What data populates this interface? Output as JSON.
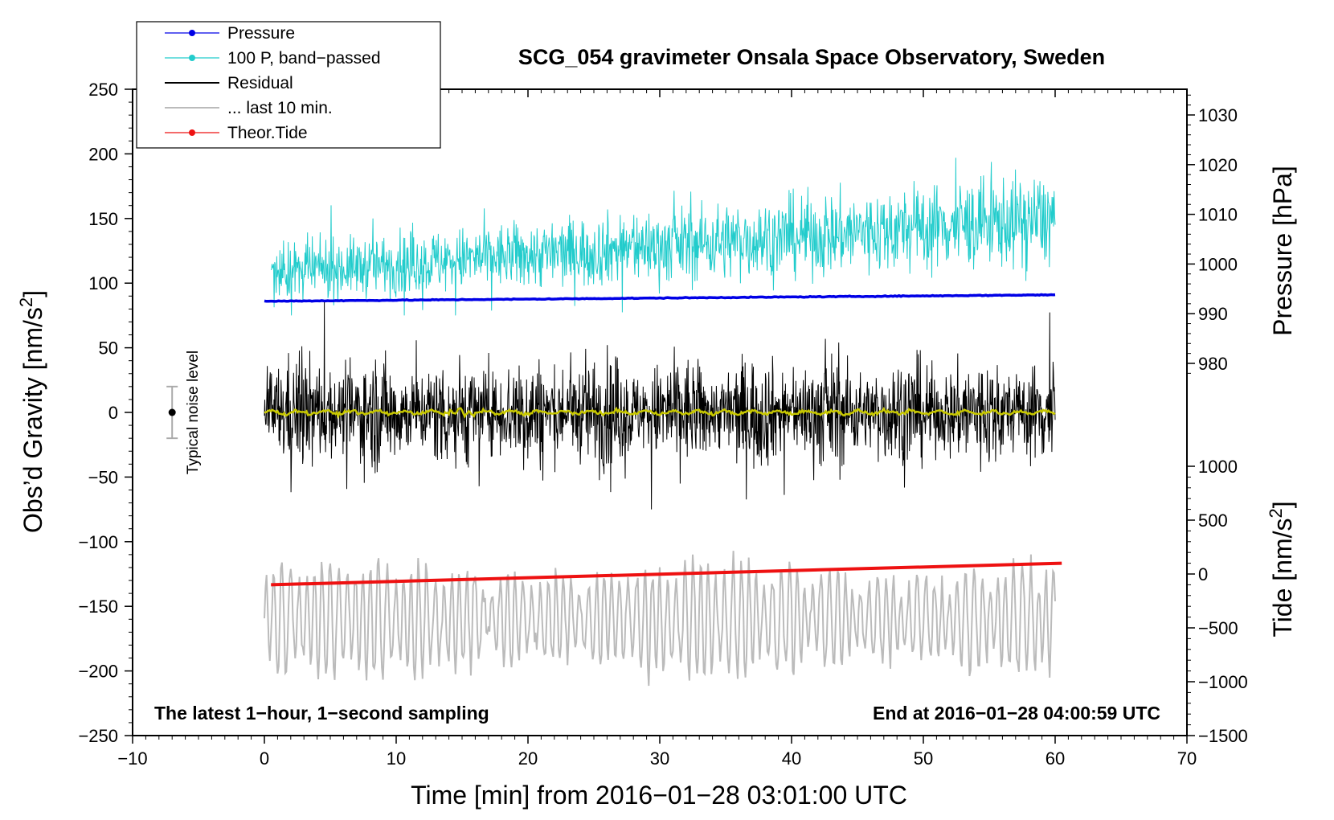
{
  "chart_data": {
    "type": "line",
    "title": "SCG_054 gravimeter Onsala Space Observatory, Sweden",
    "xlabel": "Time [min] from 2016−01−28 03:01:00 UTC",
    "ylabel_left": "Obs’d Gravity [nm/s",
    "ylabel_left_sup": "2",
    "ylabel_left_end": "]",
    "ylabel_right_pressure": "Pressure [hPa]",
    "ylabel_right_tide": "Tide [nm/s",
    "ylabel_right_tide_sup": "2",
    "ylabel_right_tide_end": "]",
    "xlim": [
      -10,
      70
    ],
    "ylim": [
      -250,
      250
    ],
    "pressure_axis": {
      "range": [
        980,
        1030
      ],
      "ticks": [
        980,
        990,
        1000,
        1010,
        1020,
        1030
      ]
    },
    "tide_axis": {
      "range": [
        -1500,
        1000
      ],
      "ticks": [
        -1500,
        -1000,
        -500,
        0,
        500,
        1000
      ]
    },
    "x_ticks": [
      "−10",
      "0",
      "10",
      "20",
      "30",
      "40",
      "50",
      "60",
      "70"
    ],
    "y_ticks": [
      "250",
      "200",
      "150",
      "100",
      "50",
      "0",
      "−50",
      "−100",
      "−150",
      "−200",
      "−250"
    ],
    "legend": [
      {
        "label": "Pressure",
        "color": "#0000e6",
        "marker": true
      },
      {
        "label": "100 P, band−passed",
        "color": "#22cccc",
        "marker": true
      },
      {
        "label": "Residual",
        "color": "#000000",
        "marker": false
      },
      {
        "label": "... last 10 min.",
        "color": "#bbbbbb",
        "marker": false
      },
      {
        "label": "Theor.Tide",
        "color": "#ee1111",
        "marker": true
      }
    ],
    "annotations": {
      "left": "The latest 1−hour, 1−second sampling",
      "right": "End at 2016−01−28 04:00:59 UTC",
      "noise": "Typical noise level"
    },
    "noise_bar": {
      "x": -7,
      "center": 0,
      "half_range": 20
    },
    "series": [
      {
        "name": "Pressure",
        "unit": "hPa",
        "color": "#0000e6",
        "x_range": [
          0,
          60
        ],
        "start": 992.5,
        "end": 993.8
      },
      {
        "name": "100 P, band−passed",
        "color": "#22cccc",
        "x_range": [
          0.5,
          60
        ],
        "start_center": 108,
        "end_center": 150,
        "min": 75,
        "max": 197
      },
      {
        "name": "Residual",
        "color": "#000000",
        "x_range": [
          0,
          60
        ],
        "center": 0,
        "min": -75,
        "max": 87
      },
      {
        "name": "Residual (smoothed)",
        "color": "#c8c800",
        "x_range": [
          0,
          60
        ],
        "center": 0
      },
      {
        "name": "... last 10 min.",
        "color": "#bbbbbb",
        "x_range": [
          0,
          60
        ],
        "center": -160,
        "min": -215,
        "max": -87
      },
      {
        "name": "Theor.Tide",
        "unit": "nm/s2",
        "color": "#ee1111",
        "x_range": [
          0.5,
          60.5
        ],
        "start": -100,
        "end": 100
      }
    ]
  }
}
